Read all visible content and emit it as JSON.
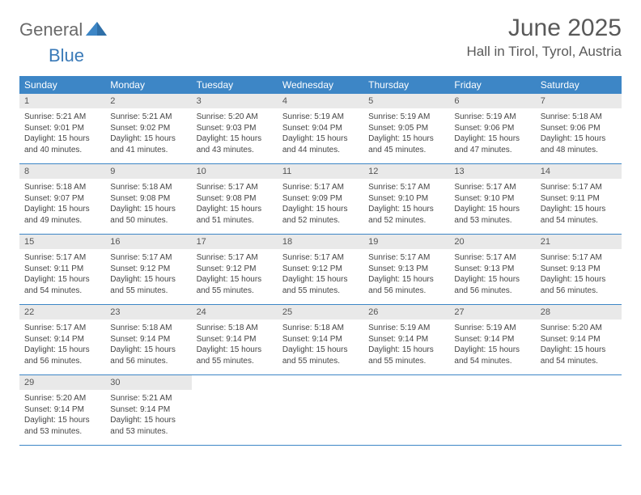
{
  "brand": {
    "part1": "General",
    "part2": "Blue"
  },
  "title": "June 2025",
  "location": "Hall in Tirol, Tyrol, Austria",
  "weekdays": [
    "Sunday",
    "Monday",
    "Tuesday",
    "Wednesday",
    "Thursday",
    "Friday",
    "Saturday"
  ],
  "colors": {
    "header_bg": "#3d86c6",
    "header_text": "#ffffff",
    "daynum_bg": "#e9e9e9",
    "body_text": "#454545",
    "title_text": "#595959",
    "rule": "#3d86c6"
  },
  "days": [
    {
      "n": "1",
      "sunrise": "5:21 AM",
      "sunset": "9:01 PM",
      "daylight": "15 hours and 40 minutes."
    },
    {
      "n": "2",
      "sunrise": "5:21 AM",
      "sunset": "9:02 PM",
      "daylight": "15 hours and 41 minutes."
    },
    {
      "n": "3",
      "sunrise": "5:20 AM",
      "sunset": "9:03 PM",
      "daylight": "15 hours and 43 minutes."
    },
    {
      "n": "4",
      "sunrise": "5:19 AM",
      "sunset": "9:04 PM",
      "daylight": "15 hours and 44 minutes."
    },
    {
      "n": "5",
      "sunrise": "5:19 AM",
      "sunset": "9:05 PM",
      "daylight": "15 hours and 45 minutes."
    },
    {
      "n": "6",
      "sunrise": "5:19 AM",
      "sunset": "9:06 PM",
      "daylight": "15 hours and 47 minutes."
    },
    {
      "n": "7",
      "sunrise": "5:18 AM",
      "sunset": "9:06 PM",
      "daylight": "15 hours and 48 minutes."
    },
    {
      "n": "8",
      "sunrise": "5:18 AM",
      "sunset": "9:07 PM",
      "daylight": "15 hours and 49 minutes."
    },
    {
      "n": "9",
      "sunrise": "5:18 AM",
      "sunset": "9:08 PM",
      "daylight": "15 hours and 50 minutes."
    },
    {
      "n": "10",
      "sunrise": "5:17 AM",
      "sunset": "9:08 PM",
      "daylight": "15 hours and 51 minutes."
    },
    {
      "n": "11",
      "sunrise": "5:17 AM",
      "sunset": "9:09 PM",
      "daylight": "15 hours and 52 minutes."
    },
    {
      "n": "12",
      "sunrise": "5:17 AM",
      "sunset": "9:10 PM",
      "daylight": "15 hours and 52 minutes."
    },
    {
      "n": "13",
      "sunrise": "5:17 AM",
      "sunset": "9:10 PM",
      "daylight": "15 hours and 53 minutes."
    },
    {
      "n": "14",
      "sunrise": "5:17 AM",
      "sunset": "9:11 PM",
      "daylight": "15 hours and 54 minutes."
    },
    {
      "n": "15",
      "sunrise": "5:17 AM",
      "sunset": "9:11 PM",
      "daylight": "15 hours and 54 minutes."
    },
    {
      "n": "16",
      "sunrise": "5:17 AM",
      "sunset": "9:12 PM",
      "daylight": "15 hours and 55 minutes."
    },
    {
      "n": "17",
      "sunrise": "5:17 AM",
      "sunset": "9:12 PM",
      "daylight": "15 hours and 55 minutes."
    },
    {
      "n": "18",
      "sunrise": "5:17 AM",
      "sunset": "9:12 PM",
      "daylight": "15 hours and 55 minutes."
    },
    {
      "n": "19",
      "sunrise": "5:17 AM",
      "sunset": "9:13 PM",
      "daylight": "15 hours and 56 minutes."
    },
    {
      "n": "20",
      "sunrise": "5:17 AM",
      "sunset": "9:13 PM",
      "daylight": "15 hours and 56 minutes."
    },
    {
      "n": "21",
      "sunrise": "5:17 AM",
      "sunset": "9:13 PM",
      "daylight": "15 hours and 56 minutes."
    },
    {
      "n": "22",
      "sunrise": "5:17 AM",
      "sunset": "9:14 PM",
      "daylight": "15 hours and 56 minutes."
    },
    {
      "n": "23",
      "sunrise": "5:18 AM",
      "sunset": "9:14 PM",
      "daylight": "15 hours and 56 minutes."
    },
    {
      "n": "24",
      "sunrise": "5:18 AM",
      "sunset": "9:14 PM",
      "daylight": "15 hours and 55 minutes."
    },
    {
      "n": "25",
      "sunrise": "5:18 AM",
      "sunset": "9:14 PM",
      "daylight": "15 hours and 55 minutes."
    },
    {
      "n": "26",
      "sunrise": "5:19 AM",
      "sunset": "9:14 PM",
      "daylight": "15 hours and 55 minutes."
    },
    {
      "n": "27",
      "sunrise": "5:19 AM",
      "sunset": "9:14 PM",
      "daylight": "15 hours and 54 minutes."
    },
    {
      "n": "28",
      "sunrise": "5:20 AM",
      "sunset": "9:14 PM",
      "daylight": "15 hours and 54 minutes."
    },
    {
      "n": "29",
      "sunrise": "5:20 AM",
      "sunset": "9:14 PM",
      "daylight": "15 hours and 53 minutes."
    },
    {
      "n": "30",
      "sunrise": "5:21 AM",
      "sunset": "9:14 PM",
      "daylight": "15 hours and 53 minutes."
    }
  ],
  "labels": {
    "sunrise": "Sunrise: ",
    "sunset": "Sunset: ",
    "daylight": "Daylight: "
  }
}
